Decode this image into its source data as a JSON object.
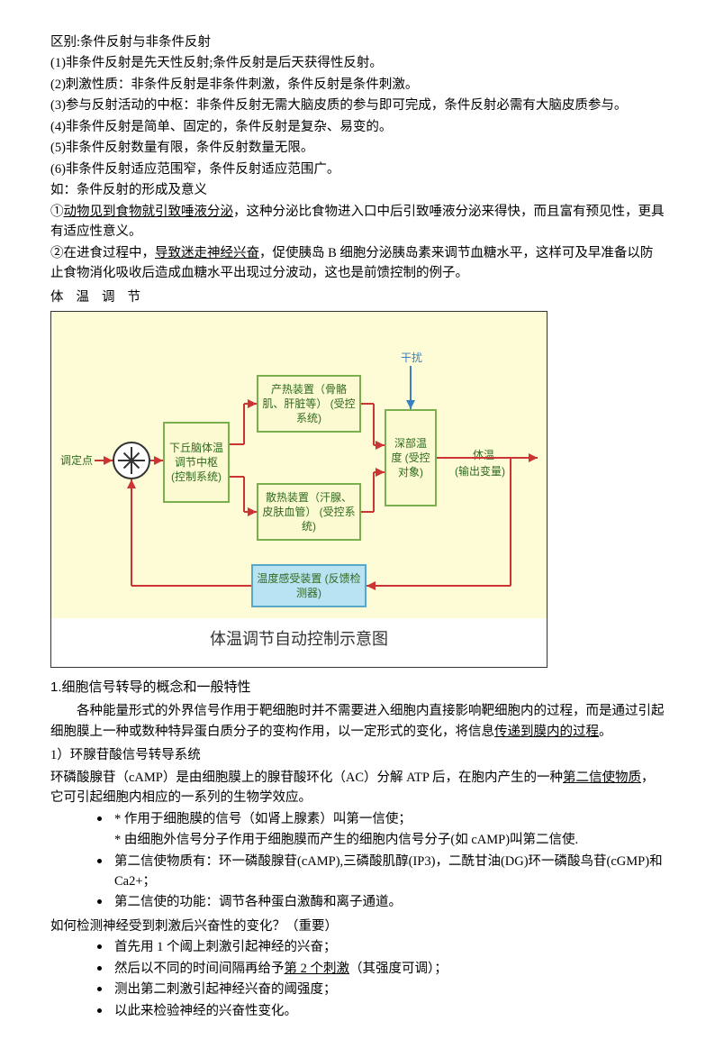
{
  "header": "区别:条件反射与非条件反射",
  "points": [
    "(1)非条件反射是先天性反射;条件反射是后天获得性反射。",
    "(2)刺激性质：非条件反射是非条件刺激，条件反射是条件刺激。",
    "(3)参与反射活动的中枢：非条件反射无需大脑皮质的参与即可完成，条件反射必需有大脑皮质参与。",
    "(4)非条件反射是简单、固定的，条件反射是复杂、易变的。",
    "(5)非条件反射数量有限，条件反射数量无限。",
    "(6)非条件反射适应范围窄，条件反射适应范围广。"
  ],
  "eg_title": "如：条件反射的形成及意义",
  "eg1_pre": "①",
  "eg1_u": "动物见到食物就引致唾液分泌",
  "eg1_post": "，这种分泌比食物进入口中后引致唾液分泌来得快，而且富有预见性，更具有适应性意义。",
  "eg2_pre": "②在进食过程中，",
  "eg2_u": "导致迷走神经兴奋",
  "eg2_mid": "，促使胰岛 B 细胞分泌胰岛素来调节血糖水平，这样可及早准备以防止食物消化吸收后造成血糖水平出现过分波动，这也是前馈控制的例子。",
  "spaced": "体温调节",
  "diagram": {
    "bg_color": "#fefcd7",
    "box_fill": "#fcfad0",
    "box_border": "#7aae4e",
    "box_text": "#2e6a1f",
    "blue_fill": "#b9e2f3",
    "blue_border": "#5aa8c8",
    "label_text": "#2e6a1f",
    "red": "#cc3333",
    "blue_arrow": "#3a7fbf",
    "setpoint": "调定点",
    "hypo": "下丘脑体温调节中枢\n(控制系统)",
    "heat": "产热装置（骨骼肌、肝脏等）\n(受控系统)",
    "dissip": "散热装置（汗腺、皮肤血管）\n(受控系统)",
    "deep": "深部温度\n(受控对象)",
    "disturb": "干扰",
    "out1": "体温",
    "out2": "(输出变量)",
    "sensor": "温度感受装置\n(反馈检测器)",
    "caption": "体温调节自动控制示意图"
  },
  "sec1_title": "1.细胞信号转导的概念和一般特性",
  "sec1_p1_a": "各种能量形式的外界信号作用于靶细胞时并不需要进入细胞内直接影响靶细胞内的过程，而是通过引起细胞膜上一种或数种特异蛋白质分子的变构作用，以一定形式的变化，将信息",
  "sec1_p1_u": "传递到膜内的过程",
  "sec1_p1_b": "。",
  "sec1_sub": "1）环腺苷酸信号转导系统",
  "sec1_p2_a": "环磷酸腺苷（cAMP）是由细胞膜上的腺苷酸环化（AC）分解 ATP 后，在胞内产生的一种",
  "sec1_p2_u": "第二信使物质",
  "sec1_p2_b": "，它可引起细胞内相应的一系列的生物学效应。",
  "bullets1": [
    "* 作用于细胞膜的信号（如肾上腺素）叫第一信使；",
    "* 由细胞外信号分子作用于细胞膜而产生的细胞内信号分子(如 cAMP)叫第二信使."
  ],
  "bullet_b": "第二信使物质有：环一磷酸腺苷(cAMP),三磷酸肌醇(IP3)，二酰甘油(DG)环一磷酸鸟苷(cGMP)和 Ca2+；",
  "bullet_c": "第二信使的功能：调节各种蛋白激酶和离子通道。",
  "q_title": "如何检测神经受到刺激后兴奋性的变化？（重要）",
  "q_bullets": [
    "首先用 1 个阈上刺激引起神经的兴奋；"
  ],
  "q_b2_a": "然后以不同的时间间隔再给予",
  "q_b2_u": "第 2 个刺激",
  "q_b2_b": "（其强度可调）；",
  "q_bullets2": [
    "测出第二刺激引起神经兴奋的阈强度；",
    "以此来检验神经的兴奋性变化。"
  ]
}
